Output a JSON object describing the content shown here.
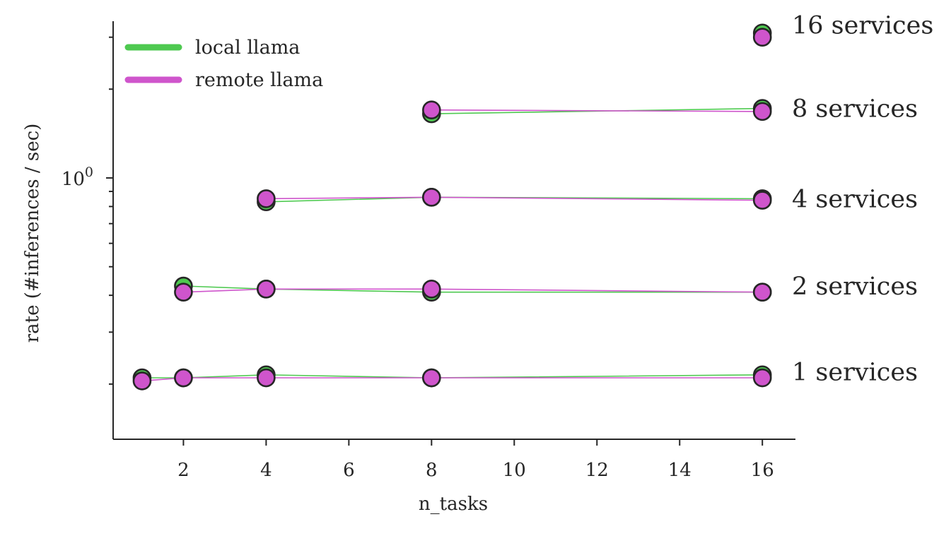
{
  "chart_data": {
    "type": "line",
    "title": "",
    "xlabel": "n_tasks",
    "ylabel": "rate (#inferences / sec)",
    "yscale": "log",
    "xlim": [
      0.3,
      16.8
    ],
    "ylim": [
      0.13,
      3.4
    ],
    "grid": false,
    "legend_position": "top-left",
    "x_ticks": [
      2,
      4,
      6,
      8,
      10,
      12,
      14,
      16
    ],
    "x_tick_labels": [
      "2",
      "4",
      "6",
      "8",
      "10",
      "12",
      "14",
      "16"
    ],
    "y_major_ticks": [
      {
        "value": 1,
        "base": "10",
        "exponent": "0"
      }
    ],
    "y_minor_ticks": [
      0.2,
      0.3,
      0.4,
      0.5,
      0.6,
      0.7,
      0.8,
      0.9,
      2,
      3
    ],
    "series": [
      {
        "name": "local llama",
        "color": "#4ec950"
      },
      {
        "name": "remote llama",
        "color": "#cf55cc"
      }
    ],
    "groups": [
      {
        "label": "1 services",
        "label_at": 0.22,
        "series": [
          {
            "name": "local llama",
            "x": [
              1,
              2,
              4,
              8,
              16
            ],
            "y": [
              0.21,
              0.21,
              0.215,
              0.21,
              0.215
            ]
          },
          {
            "name": "remote llama",
            "x": [
              1,
              2,
              4,
              8,
              16
            ],
            "y": [
              0.205,
              0.21,
              0.21,
              0.21,
              0.21
            ]
          }
        ]
      },
      {
        "label": "2 services",
        "label_at": 0.43,
        "series": [
          {
            "name": "local llama",
            "x": [
              2,
              4,
              8,
              16
            ],
            "y": [
              0.43,
              0.42,
              0.41,
              0.41
            ]
          },
          {
            "name": "remote llama",
            "x": [
              2,
              4,
              8,
              16
            ],
            "y": [
              0.41,
              0.42,
              0.42,
              0.41
            ]
          }
        ]
      },
      {
        "label": "4 services",
        "label_at": 0.85,
        "series": [
          {
            "name": "local llama",
            "x": [
              4,
              8,
              16
            ],
            "y": [
              0.83,
              0.86,
              0.85
            ]
          },
          {
            "name": "remote llama",
            "x": [
              4,
              8,
              16
            ],
            "y": [
              0.85,
              0.86,
              0.84
            ]
          }
        ]
      },
      {
        "label": "8 services",
        "label_at": 1.72,
        "series": [
          {
            "name": "local llama",
            "x": [
              8,
              16
            ],
            "y": [
              1.65,
              1.72
            ]
          },
          {
            "name": "remote llama",
            "x": [
              8,
              16
            ],
            "y": [
              1.7,
              1.68
            ]
          }
        ]
      },
      {
        "label": "16 services",
        "label_at": 3.3,
        "series": [
          {
            "name": "local llama",
            "x": [
              16
            ],
            "y": [
              3.1
            ]
          },
          {
            "name": "remote llama",
            "x": [
              16
            ],
            "y": [
              3.0
            ]
          }
        ]
      }
    ]
  }
}
